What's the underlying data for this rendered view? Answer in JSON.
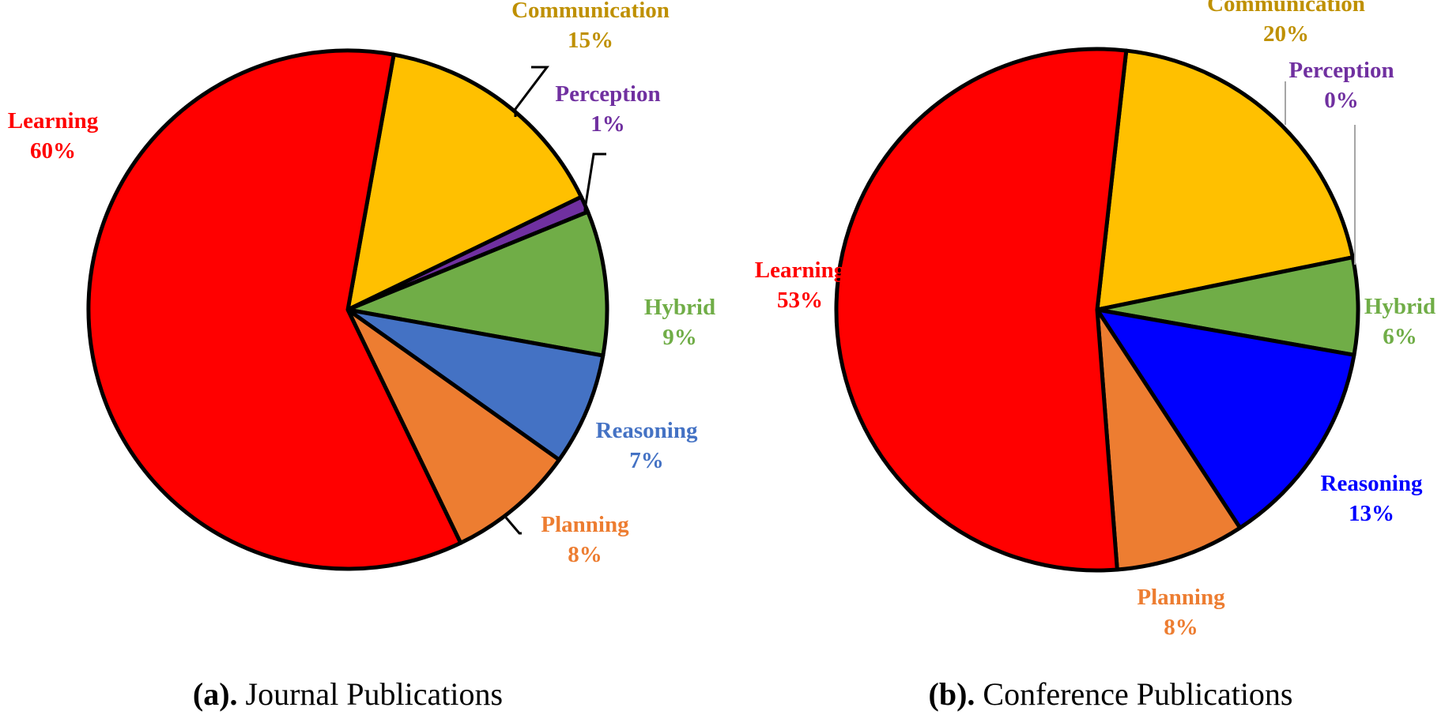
{
  "chart_data": [
    {
      "type": "pie",
      "caption_prefix": "(a).",
      "caption_text": " Journal Publications",
      "slices": [
        {
          "label": "Communication",
          "percent_label": "15%",
          "value": 15,
          "color": "#FFC000",
          "label_color": "#BF9000"
        },
        {
          "label": "Perception",
          "percent_label": "1%",
          "value": 1,
          "color": "#7030A0",
          "label_color": "#7030A0"
        },
        {
          "label": "Hybrid",
          "percent_label": "9%",
          "value": 9,
          "color": "#70AD47",
          "label_color": "#70AD47"
        },
        {
          "label": "Reasoning",
          "percent_label": "7%",
          "value": 7,
          "color": "#4472C4",
          "label_color": "#4472C4"
        },
        {
          "label": "Planning",
          "percent_label": "8%",
          "value": 8,
          "color": "#ED7D31",
          "label_color": "#ED7D31"
        },
        {
          "label": "Learning",
          "percent_label": "60%",
          "value": 60,
          "color": "#FF0000",
          "label_color": "#FF0000"
        }
      ]
    },
    {
      "type": "pie",
      "caption_prefix": "(b).",
      "caption_text": " Conference Publications",
      "slices": [
        {
          "label": "Communication",
          "percent_label": "20%",
          "value": 20,
          "color": "#FFC000",
          "label_color": "#BF9000"
        },
        {
          "label": "Perception",
          "percent_label": "0%",
          "value": 0,
          "color": "#7030A0",
          "label_color": "#7030A0"
        },
        {
          "label": "Hybrid",
          "percent_label": "6%",
          "value": 6,
          "color": "#70AD47",
          "label_color": "#70AD47"
        },
        {
          "label": "Reasoning",
          "percent_label": "13%",
          "value": 13,
          "color": "#0000FF",
          "label_color": "#0000FF"
        },
        {
          "label": "Planning",
          "percent_label": "8%",
          "value": 8,
          "color": "#ED7D31",
          "label_color": "#ED7D31"
        },
        {
          "label": "Learning",
          "percent_label": "53%",
          "value": 53,
          "color": "#FF0000",
          "label_color": "#FF0000"
        }
      ]
    }
  ]
}
